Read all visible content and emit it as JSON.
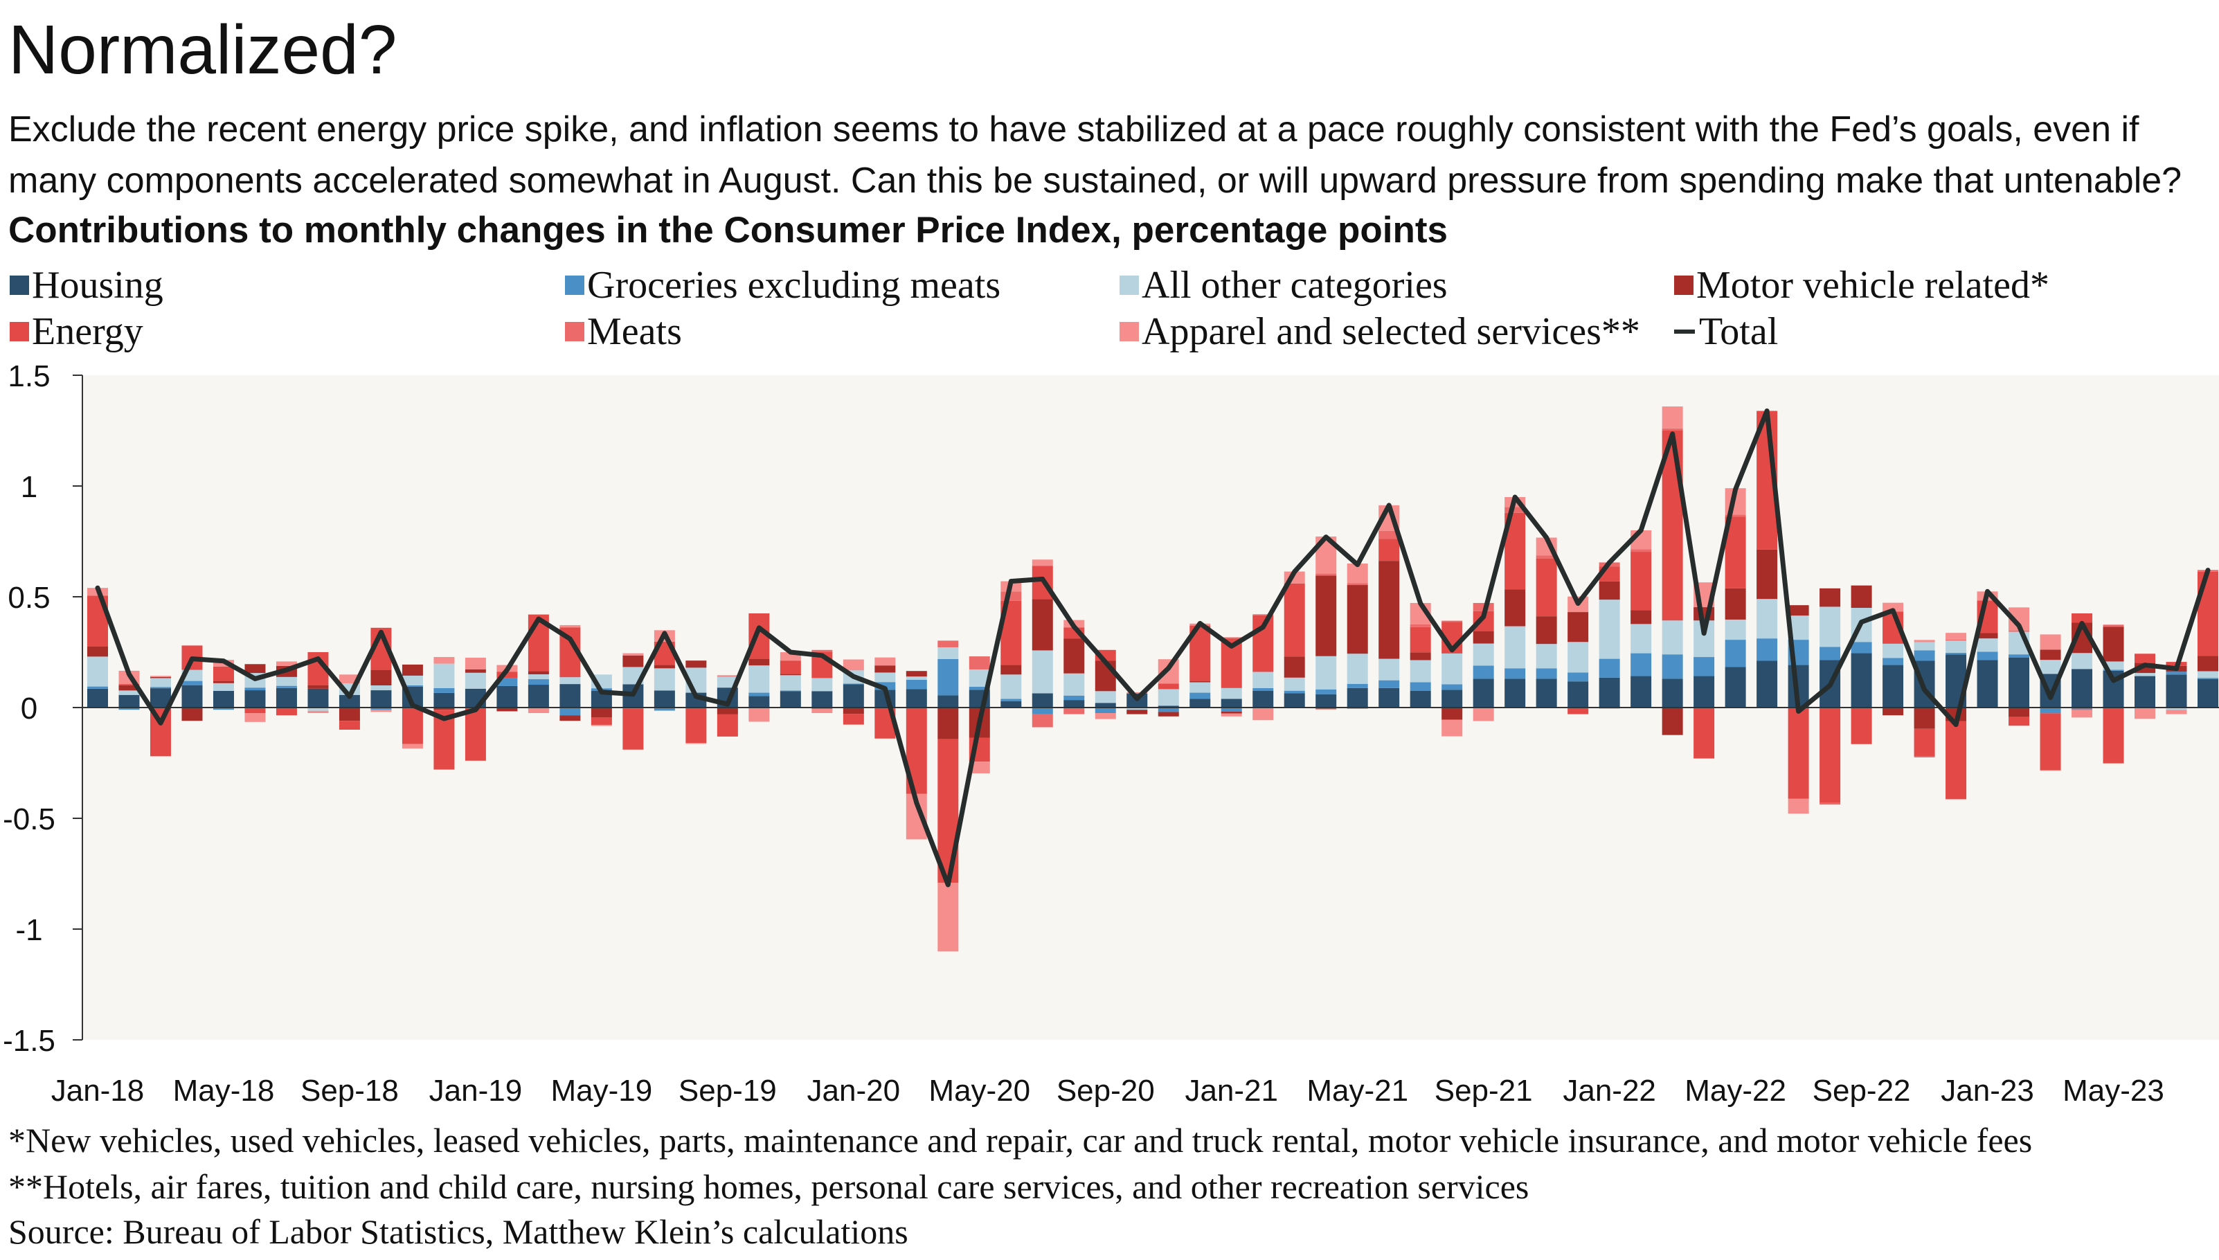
{
  "header": {
    "title": "Normalized?",
    "subtitle": "Exclude the recent energy price spike, and inflation seems to have stabilized at a pace roughly consistent with the Fed’s goals, even if many components accelerated somewhat in August. Can this be sustained, or will upward pressure from spending make that untenable?"
  },
  "legend": [
    {
      "label": "Housing",
      "color": "#2a4e6c",
      "marker": "square"
    },
    {
      "label": "Groceries excluding meats",
      "color": "#4a90c6",
      "marker": "square"
    },
    {
      "label": "All other categories",
      "color": "#b7d3e0",
      "marker": "square"
    },
    {
      "label": "Motor vehicle related*",
      "color": "#a82d28",
      "marker": "square"
    },
    {
      "label": "Energy",
      "color": "#e34a47",
      "marker": "square"
    },
    {
      "label": "Meats",
      "color": "#ec6b6a",
      "marker": "square"
    },
    {
      "label": "Apparel and selected services**",
      "color": "#f58e8c",
      "marker": "square"
    },
    {
      "label": "Total",
      "color": "#262d2c",
      "marker": "line"
    }
  ],
  "footnotes": {
    "note1": "*New vehicles, used vehicles, leased vehicles, parts, maintenance and repair, car and truck rental, motor vehicle insurance, and motor vehicle fees",
    "note2": "**Hotels, air fares, tuition and child care, nursing homes, personal care services, and other recreation services",
    "source": "Source: Bureau of Labor Statistics, Matthew Klein’s calculations"
  },
  "chart_data": {
    "type": "bar",
    "stacked": true,
    "title": "Contributions to monthly changes in the Consumer Price Index, percentage points",
    "xlabel": "",
    "ylabel": "",
    "ylim": [
      -1.5,
      1.5
    ],
    "yticks": [
      "1.5",
      "1",
      "0.5",
      "0",
      "-0.5",
      "-1",
      "-1.5"
    ],
    "ytick_values": [
      1.5,
      1,
      0.5,
      0,
      -0.5,
      -1,
      -1.5
    ],
    "xtick_labels": [
      "Jan-18",
      "May-18",
      "Sep-18",
      "Jan-19",
      "May-19",
      "Sep-19",
      "Jan-20",
      "May-20",
      "Sep-20",
      "Jan-21",
      "May-21",
      "Sep-21",
      "Jan-22",
      "May-22",
      "Sep-22",
      "Jan-23",
      "May-23"
    ],
    "grid": false,
    "legend_position": "top",
    "plot_background": "#f7f6f2",
    "categories": [
      "Jan-18",
      "Feb-18",
      "Mar-18",
      "Apr-18",
      "May-18",
      "Jun-18",
      "Jul-18",
      "Aug-18",
      "Sep-18",
      "Oct-18",
      "Nov-18",
      "Dec-18",
      "Jan-19",
      "Feb-19",
      "Mar-19",
      "Apr-19",
      "May-19",
      "Jun-19",
      "Jul-19",
      "Aug-19",
      "Sep-19",
      "Oct-19",
      "Nov-19",
      "Dec-19",
      "Jan-20",
      "Feb-20",
      "Mar-20",
      "Apr-20",
      "May-20",
      "Jun-20",
      "Jul-20",
      "Aug-20",
      "Sep-20",
      "Oct-20",
      "Nov-20",
      "Dec-20",
      "Jan-21",
      "Feb-21",
      "Mar-21",
      "Apr-21",
      "May-21",
      "Jun-21",
      "Jul-21",
      "Aug-21",
      "Sep-21",
      "Oct-21",
      "Nov-21",
      "Dec-21",
      "Jan-22",
      "Feb-22",
      "Mar-22",
      "Apr-22",
      "May-22",
      "Jun-22",
      "Jul-22",
      "Aug-22",
      "Sep-22",
      "Oct-22",
      "Nov-22",
      "Dec-22",
      "Jan-23",
      "Feb-23",
      "Mar-23",
      "Apr-23",
      "May-23",
      "Jun-23",
      "Jul-23",
      "Aug-23"
    ],
    "series": [
      {
        "name": "Housing",
        "color": "#2a4e6c",
        "values": [
          0.085,
          0.057,
          0.087,
          0.1,
          0.075,
          0.078,
          0.088,
          0.085,
          0.057,
          0.078,
          0.094,
          0.066,
          0.085,
          0.097,
          0.103,
          0.106,
          0.075,
          0.105,
          0.077,
          0.067,
          0.09,
          0.052,
          0.074,
          0.074,
          0.105,
          0.08,
          0.083,
          0.055,
          0.08,
          0.029,
          0.064,
          0.034,
          0.021,
          0.063,
          0.008,
          0.039,
          0.039,
          0.076,
          0.064,
          0.06,
          0.088,
          0.088,
          0.076,
          0.08,
          0.13,
          0.13,
          0.13,
          0.118,
          0.135,
          0.142,
          0.13,
          0.142,
          0.183,
          0.211,
          0.192,
          0.215,
          0.246,
          0.192,
          0.211,
          0.239,
          0.215,
          0.225,
          0.152,
          0.174,
          0.166,
          0.142,
          0.149,
          0.129
        ]
      },
      {
        "name": "Groceries excluding meats",
        "color": "#4a90c6",
        "values": [
          0.01,
          -0.01,
          0.006,
          0.02,
          -0.01,
          0.012,
          0.01,
          0,
          0,
          -0.01,
          0.006,
          0.022,
          0,
          0.035,
          0.025,
          -0.035,
          0.012,
          -0.005,
          -0.014,
          0,
          0,
          0.015,
          0.003,
          0,
          0.003,
          0.035,
          0.042,
          0.164,
          0.014,
          0.01,
          -0.03,
          0.02,
          -0.025,
          0,
          -0.02,
          0.028,
          -0.018,
          0.012,
          0.012,
          0.022,
          0.019,
          0.035,
          0.038,
          0.025,
          0.059,
          0.047,
          0.047,
          0.04,
          0.085,
          0.103,
          0.11,
          0.086,
          0.123,
          0.101,
          0.114,
          0.059,
          0.05,
          0.032,
          0.047,
          0.008,
          0.037,
          0.015,
          -0.026,
          -0.008,
          0.005,
          0,
          0.013,
          0.005
        ]
      },
      {
        "name": "All other categories",
        "color": "#b7d3e0",
        "values": [
          0.135,
          0.02,
          0.04,
          0.05,
          0.035,
          0.066,
          0.04,
          -0.015,
          0.052,
          0.022,
          0.044,
          0.11,
          0.072,
          0,
          0.022,
          0.031,
          0.062,
          0.078,
          0.1,
          0.113,
          0.048,
          0.123,
          0.069,
          0.059,
          0.06,
          0.043,
          0.015,
          0.053,
          0.078,
          0.11,
          0.194,
          0.1,
          0.053,
          -0.01,
          0.075,
          0.047,
          0.049,
          0.073,
          0.059,
          0.15,
          0.136,
          0.097,
          0.1,
          0.139,
          0.1,
          0.19,
          0.11,
          0.138,
          0.267,
          0.132,
          0.153,
          0.165,
          0.091,
          0.178,
          0.109,
          0.181,
          0.154,
          0.064,
          0.037,
          0.055,
          0.06,
          0.102,
          0.063,
          0.072,
          0.037,
          0.014,
          -0.01,
          0.03
        ]
      },
      {
        "name": "Motor vehicle related*",
        "color": "#a82d28",
        "values": [
          0.045,
          0.024,
          0.005,
          -0.06,
          0.01,
          0.04,
          0.05,
          0.015,
          -0.06,
          0.07,
          0.05,
          -0.01,
          0.015,
          -0.017,
          0.015,
          -0.025,
          -0.045,
          0.052,
          0.015,
          0.032,
          -0.031,
          0.03,
          0.006,
          -0.005,
          -0.029,
          0.032,
          0.025,
          -0.143,
          -0.136,
          0.043,
          0.232,
          0.157,
          0.137,
          -0.02,
          -0.02,
          0.006,
          -0.009,
          0,
          0.095,
          0.364,
          0.31,
          0.442,
          0.035,
          -0.055,
          0.056,
          0.166,
          0.125,
          0.135,
          0.082,
          0.063,
          -0.124,
          0.06,
          0.141,
          0.223,
          0.047,
          0.083,
          0.101,
          -0.035,
          -0.096,
          -0.061,
          0.024,
          -0.042,
          0.046,
          0.138,
          0.156,
          0.046,
          0.026,
          0.069
        ]
      },
      {
        "name": "Energy",
        "color": "#e34a47",
        "values": [
          0.23,
          0.005,
          -0.22,
          0.11,
          0.065,
          -0.025,
          -0.035,
          0.15,
          -0.04,
          0.19,
          -0.165,
          -0.27,
          -0.24,
          0.03,
          0.255,
          0.225,
          -0.033,
          -0.185,
          0.105,
          -0.16,
          -0.1,
          0.205,
          0.06,
          0.119,
          -0.048,
          -0.14,
          -0.39,
          -0.648,
          -0.108,
          0.29,
          0.15,
          0.05,
          0.049,
          0,
          0.025,
          0.25,
          0.224,
          0.255,
          0.33,
          -0.008,
          -0.005,
          0.1,
          0.114,
          0.143,
          0.09,
          0.346,
          0.26,
          -0.03,
          0.068,
          0.263,
          0.857,
          -0.23,
          0.323,
          0.626,
          -0.412,
          -0.43,
          -0.165,
          0.145,
          -0.124,
          -0.353,
          0.147,
          -0.04,
          -0.256,
          0.041,
          -0.252,
          0.041,
          0.018,
          0.38
        ]
      },
      {
        "name": "Meats",
        "color": "#ec6b6a",
        "values": [
          0,
          0,
          0,
          0,
          0,
          0,
          0,
          0,
          0,
          0,
          0,
          0,
          0,
          0,
          0,
          0,
          0,
          0,
          0,
          0,
          0,
          0,
          0,
          0.008,
          0,
          0,
          0,
          0.03,
          0.059,
          0.042,
          -0.059,
          -0.03,
          0,
          0.005,
          0,
          0,
          0.005,
          0.005,
          0,
          0.009,
          0.009,
          0.035,
          0.012,
          0.005,
          0.037,
          0.026,
          0.015,
          0,
          0.018,
          0.012,
          0.01,
          0,
          0.01,
          0,
          0,
          -0.008,
          0,
          0,
          -0.005,
          0.005,
          0,
          0.005,
          -0.003,
          -0.004,
          0.01,
          0,
          0,
          0.008
        ]
      },
      {
        "name": "Apparel and selected services**",
        "color": "#f58e8c",
        "values": [
          0.035,
          0.06,
          0.005,
          0,
          0.03,
          -0.04,
          0.02,
          -0.01,
          0.04,
          -0.01,
          -0.02,
          0.03,
          0.053,
          0.03,
          -0.025,
          0.01,
          -0.005,
          0.01,
          0.052,
          -0.004,
          0.008,
          -0.064,
          0.038,
          -0.02,
          0.049,
          0.036,
          -0.205,
          -0.31,
          -0.053,
          0.046,
          0.028,
          0.034,
          -0.027,
          0,
          0.11,
          0.009,
          -0.013,
          -0.057,
          0.054,
          0.167,
          0.088,
          0.116,
          0.097,
          -0.075,
          -0.061,
          0.045,
          0.08,
          0.07,
          -0.005,
          0.085,
          0.099,
          0.112,
          0.119,
          0,
          -0.067,
          0,
          0,
          0.04,
          0.01,
          0.03,
          0.041,
          0.105,
          0.069,
          -0.033,
          0,
          -0.051,
          -0.02,
          0
        ]
      },
      {
        "name": "Total",
        "color": "#262d2c",
        "type": "line",
        "values": [
          0.54,
          0.15,
          -0.07,
          0.22,
          0.21,
          0.13,
          0.17,
          0.22,
          0.05,
          0.34,
          0.01,
          -0.05,
          -0.01,
          0.17,
          0.4,
          0.31,
          0.07,
          0.06,
          0.335,
          0.05,
          0.015,
          0.36,
          0.25,
          0.235,
          0.14,
          0.086,
          -0.43,
          -0.8,
          -0.066,
          0.57,
          0.58,
          0.365,
          0.205,
          0.04,
          0.178,
          0.38,
          0.277,
          0.363,
          0.613,
          0.77,
          0.645,
          0.913,
          0.47,
          0.26,
          0.41,
          0.95,
          0.767,
          0.47,
          0.655,
          0.8,
          1.235,
          0.335,
          0.985,
          1.339,
          -0.017,
          0.1,
          0.386,
          0.438,
          0.08,
          -0.077,
          0.524,
          0.37,
          0.045,
          0.38,
          0.122,
          0.192,
          0.176,
          0.62
        ]
      }
    ]
  }
}
